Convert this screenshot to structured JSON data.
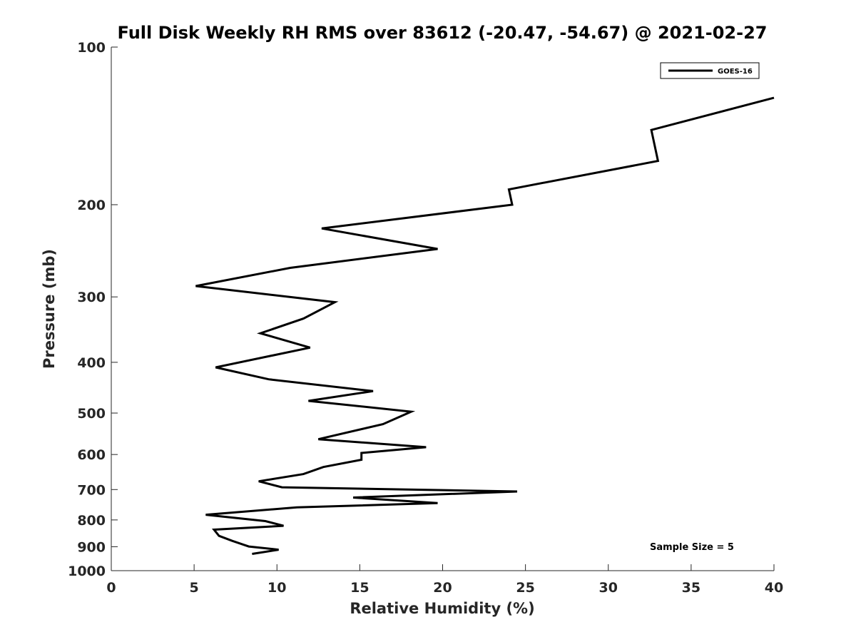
{
  "chart_data": {
    "type": "line",
    "title": "Full Disk Weekly RH RMS over 83612 (-20.47, -54.67) @ 2021-02-27",
    "xlabel": "Relative Humidity (%)",
    "ylabel": "Pressure (mb)",
    "xlim": [
      0,
      40
    ],
    "ylim": [
      100,
      1000
    ],
    "yscale": "log",
    "y_reversed": true,
    "xticks": [
      0,
      5,
      10,
      15,
      20,
      25,
      30,
      35,
      40
    ],
    "yticks": [
      100,
      200,
      300,
      400,
      500,
      600,
      700,
      800,
      900,
      1000
    ],
    "grid": false,
    "legend_position": "top-right",
    "annotation": "Sample Size = 5",
    "series": [
      {
        "name": "GOES-16",
        "color": "#000000",
        "points": [
          {
            "x": 40.0,
            "y": 125
          },
          {
            "x": 32.6,
            "y": 144
          },
          {
            "x": 33.0,
            "y": 165
          },
          {
            "x": 24.0,
            "y": 187
          },
          {
            "x": 24.2,
            "y": 200
          },
          {
            "x": 12.7,
            "y": 222
          },
          {
            "x": 19.7,
            "y": 243
          },
          {
            "x": 10.8,
            "y": 264
          },
          {
            "x": 5.1,
            "y": 286
          },
          {
            "x": 13.5,
            "y": 307
          },
          {
            "x": 11.6,
            "y": 330
          },
          {
            "x": 9.0,
            "y": 352
          },
          {
            "x": 12.0,
            "y": 375
          },
          {
            "x": 6.3,
            "y": 409
          },
          {
            "x": 9.5,
            "y": 431
          },
          {
            "x": 15.8,
            "y": 454
          },
          {
            "x": 11.9,
            "y": 474
          },
          {
            "x": 18.1,
            "y": 497
          },
          {
            "x": 16.4,
            "y": 525
          },
          {
            "x": 12.5,
            "y": 561
          },
          {
            "x": 19.0,
            "y": 581
          },
          {
            "x": 15.1,
            "y": 596
          },
          {
            "x": 15.1,
            "y": 614
          },
          {
            "x": 12.8,
            "y": 634
          },
          {
            "x": 11.6,
            "y": 654
          },
          {
            "x": 8.9,
            "y": 675
          },
          {
            "x": 10.3,
            "y": 693
          },
          {
            "x": 24.5,
            "y": 706
          },
          {
            "x": 14.6,
            "y": 725
          },
          {
            "x": 19.7,
            "y": 743
          },
          {
            "x": 11.2,
            "y": 757
          },
          {
            "x": 5.7,
            "y": 782
          },
          {
            "x": 9.3,
            "y": 804
          },
          {
            "x": 10.4,
            "y": 821
          },
          {
            "x": 6.2,
            "y": 835
          },
          {
            "x": 6.5,
            "y": 858
          },
          {
            "x": 7.3,
            "y": 877
          },
          {
            "x": 8.3,
            "y": 899
          },
          {
            "x": 10.1,
            "y": 912
          },
          {
            "x": 8.5,
            "y": 929
          }
        ]
      }
    ]
  }
}
